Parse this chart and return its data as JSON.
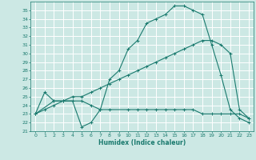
{
  "xlabel": "Humidex (Indice chaleur)",
  "bg_color": "#cce8e4",
  "grid_color": "#ffffff",
  "line_color": "#1a7a6e",
  "xlim": [
    -0.5,
    23.5
  ],
  "ylim": [
    21,
    36
  ],
  "xticks": [
    0,
    1,
    2,
    3,
    4,
    5,
    6,
    7,
    8,
    9,
    10,
    11,
    12,
    13,
    14,
    15,
    16,
    17,
    18,
    19,
    20,
    21,
    22,
    23
  ],
  "yticks": [
    21,
    22,
    23,
    24,
    25,
    26,
    27,
    28,
    29,
    30,
    31,
    32,
    33,
    34,
    35
  ],
  "curve1_x": [
    0,
    1,
    2,
    3,
    4,
    5,
    6,
    7,
    8,
    9,
    10,
    11,
    12,
    13,
    14,
    15,
    16,
    17,
    18,
    19,
    20,
    21,
    22,
    23
  ],
  "curve1_y": [
    23.0,
    25.5,
    24.5,
    24.5,
    24.5,
    21.5,
    22.0,
    23.5,
    27.0,
    28.0,
    30.5,
    31.5,
    33.5,
    34.0,
    34.5,
    35.5,
    35.5,
    35.0,
    34.5,
    31.0,
    27.5,
    23.5,
    22.5,
    22.0
  ],
  "curve2_x": [
    0,
    1,
    2,
    3,
    4,
    5,
    6,
    7,
    8,
    9,
    10,
    11,
    12,
    13,
    14,
    15,
    16,
    17,
    18,
    19,
    20,
    21,
    22,
    23
  ],
  "curve2_y": [
    23.0,
    23.5,
    24.0,
    24.5,
    25.0,
    25.0,
    25.5,
    26.0,
    26.5,
    27.0,
    27.5,
    28.0,
    28.5,
    29.0,
    29.5,
    30.0,
    30.5,
    31.0,
    31.5,
    31.5,
    31.0,
    30.0,
    23.5,
    22.5
  ],
  "curve3_x": [
    0,
    2,
    3,
    4,
    5,
    6,
    7,
    8,
    10,
    11,
    12,
    13,
    14,
    15,
    16,
    17,
    18,
    19,
    20,
    21,
    22,
    23
  ],
  "curve3_y": [
    23.0,
    24.5,
    24.5,
    24.5,
    24.5,
    24.0,
    23.5,
    23.5,
    23.5,
    23.5,
    23.5,
    23.5,
    23.5,
    23.5,
    23.5,
    23.5,
    23.0,
    23.0,
    23.0,
    23.0,
    23.0,
    22.5
  ],
  "xlabel_fontsize": 5.5,
  "tick_fontsize": 4.5,
  "marker_size": 2.5,
  "line_width": 0.8
}
